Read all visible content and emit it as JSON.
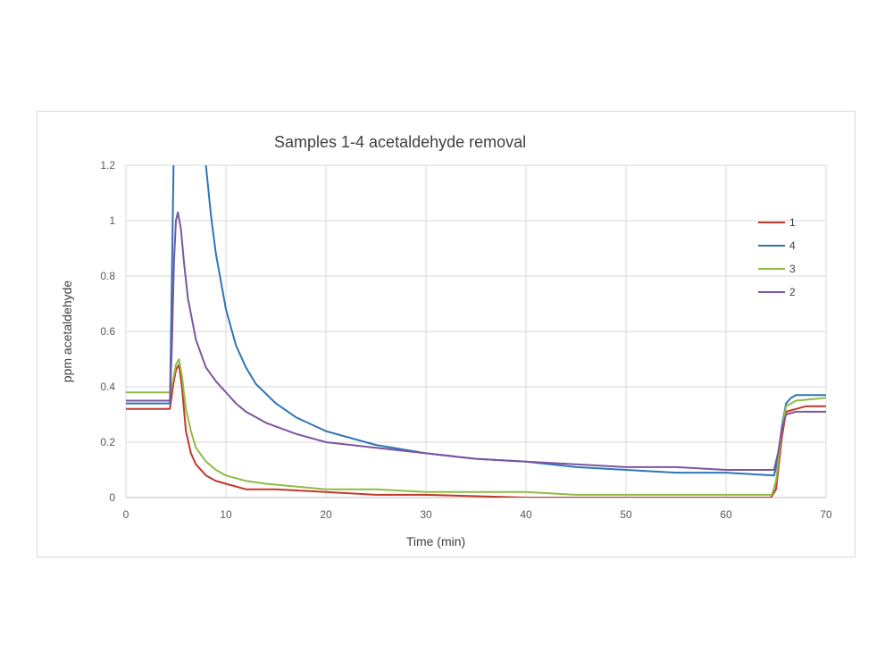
{
  "chart_data": {
    "type": "line",
    "title": "Samples 1-4 acetaldehyde removal",
    "xlabel": "Time (min)",
    "ylabel": "ppm acetaldehyde",
    "xlim": [
      0,
      70
    ],
    "ylim": [
      0,
      1.2
    ],
    "xticks": [
      "0",
      "10",
      "20",
      "30",
      "40",
      "50",
      "60",
      "70"
    ],
    "yticks": [
      "0",
      "0.2",
      "0.4",
      "0.6",
      "0.8",
      "1",
      "1.2"
    ],
    "grid": true,
    "legend_position": "right",
    "series": [
      {
        "name": "1",
        "color": "#c0392b",
        "x": [
          0,
          4.4,
          4.7,
          5.0,
          5.3,
          5.6,
          6.0,
          6.5,
          7,
          8,
          9,
          10,
          11,
          12,
          15,
          20,
          25,
          30,
          40,
          50,
          60,
          64.5,
          65,
          65.6,
          66,
          67,
          68,
          70
        ],
        "y": [
          0.32,
          0.32,
          0.4,
          0.46,
          0.48,
          0.4,
          0.24,
          0.16,
          0.12,
          0.08,
          0.06,
          0.05,
          0.04,
          0.03,
          0.03,
          0.02,
          0.01,
          0.01,
          0.0,
          0.0,
          0.0,
          0.0,
          0.03,
          0.22,
          0.31,
          0.32,
          0.33,
          0.33
        ]
      },
      {
        "name": "4",
        "color": "#2e75b6",
        "x": [
          0,
          4.4,
          4.6,
          4.8,
          5.0,
          7.0,
          7.6,
          8.0,
          8.5,
          9,
          10,
          11,
          12,
          13,
          15,
          17,
          20,
          25,
          30,
          35,
          40,
          45,
          50,
          55,
          60,
          64.8,
          65.2,
          65.6,
          66,
          66.5,
          67,
          70
        ],
        "y": [
          0.34,
          0.34,
          0.8,
          1.3,
          1.3,
          1.3,
          1.3,
          1.2,
          1.02,
          0.88,
          0.68,
          0.55,
          0.47,
          0.41,
          0.34,
          0.29,
          0.24,
          0.19,
          0.16,
          0.14,
          0.13,
          0.11,
          0.1,
          0.09,
          0.09,
          0.08,
          0.14,
          0.26,
          0.34,
          0.36,
          0.37,
          0.37
        ]
      },
      {
        "name": "3",
        "color": "#8fbc45",
        "x": [
          0,
          4.4,
          4.7,
          5.0,
          5.3,
          5.6,
          6.0,
          6.5,
          7,
          8,
          9,
          10,
          11,
          12,
          14,
          17,
          20,
          25,
          30,
          35,
          40,
          45,
          50,
          60,
          64.6,
          65,
          65.6,
          66,
          67,
          70
        ],
        "y": [
          0.38,
          0.38,
          0.42,
          0.48,
          0.5,
          0.44,
          0.32,
          0.24,
          0.18,
          0.13,
          0.1,
          0.08,
          0.07,
          0.06,
          0.05,
          0.04,
          0.03,
          0.03,
          0.02,
          0.02,
          0.02,
          0.01,
          0.01,
          0.01,
          0.01,
          0.06,
          0.25,
          0.33,
          0.35,
          0.36
        ]
      },
      {
        "name": "2",
        "color": "#7b559f",
        "x": [
          0,
          4.4,
          4.6,
          4.8,
          5.0,
          5.2,
          5.5,
          5.8,
          6.2,
          7,
          8,
          9,
          10,
          11,
          12,
          14,
          17,
          20,
          25,
          30,
          35,
          40,
          45,
          50,
          55,
          60,
          64.8,
          65.2,
          65.6,
          66,
          67,
          70
        ],
        "y": [
          0.35,
          0.35,
          0.55,
          0.85,
          1.0,
          1.03,
          0.97,
          0.85,
          0.72,
          0.57,
          0.47,
          0.42,
          0.38,
          0.34,
          0.31,
          0.27,
          0.23,
          0.2,
          0.18,
          0.16,
          0.14,
          0.13,
          0.12,
          0.11,
          0.11,
          0.1,
          0.1,
          0.16,
          0.25,
          0.3,
          0.31,
          0.31
        ]
      }
    ]
  }
}
